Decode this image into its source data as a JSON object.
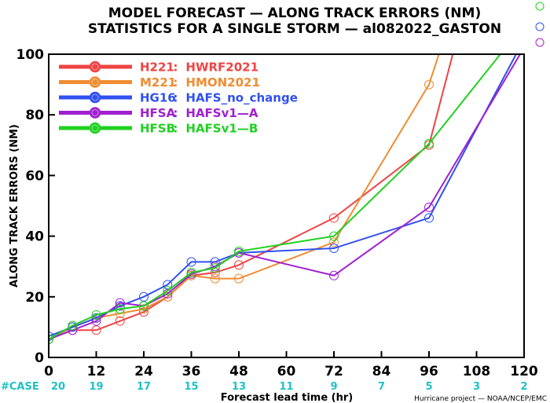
{
  "chart_data": {
    "type": "line",
    "title": "MODEL FORECAST — ALONG TRACK ERRORS (NM)",
    "subtitle": "STATISTICS FOR A SINGLE STORM — al082022_GASTON",
    "xlabel": "Forecast lead time (hr)",
    "ylabel": "ALONG TRACK ERRORS (NM)",
    "xlim": [
      0,
      120
    ],
    "ylim": [
      0,
      100
    ],
    "x_ticks": [
      0,
      12,
      24,
      36,
      48,
      60,
      72,
      84,
      96,
      108,
      120
    ],
    "y_ticks": [
      0,
      20,
      40,
      60,
      80,
      100
    ],
    "case_label": "#CASE",
    "case_counts": [
      20,
      19,
      17,
      15,
      13,
      11,
      9,
      7,
      5,
      3,
      2
    ],
    "credit": "Hurricane project — NOAA/NCEP/EMC",
    "legend_position": "top-left",
    "grid": false,
    "series": [
      {
        "code": "H221",
        "name": "HWRF2021",
        "color": "#ee4444",
        "x": [
          0,
          6,
          12,
          18,
          24,
          30,
          36,
          42,
          48,
          72,
          96,
          102
        ],
        "y": [
          6,
          9,
          9,
          12,
          15,
          20,
          27,
          28,
          30.5,
          46,
          70,
          100
        ]
      },
      {
        "code": "M221",
        "name": "HMON2021",
        "color": "#f08c32",
        "x": [
          0,
          6,
          12,
          18,
          24,
          30,
          36,
          42,
          48,
          72,
          96,
          98.5
        ],
        "y": [
          6,
          10,
          13,
          14.5,
          16,
          20,
          27,
          26,
          26,
          38,
          90,
          100
        ]
      },
      {
        "code": "HG16",
        "name": "HAFS_no_change",
        "color": "#3050f0",
        "x": [
          0,
          6,
          12,
          18,
          24,
          30,
          36,
          42,
          48,
          72,
          96,
          118
        ],
        "y": [
          7,
          10,
          13,
          17,
          20,
          24,
          31.5,
          31.5,
          34.5,
          36,
          46,
          100
        ]
      },
      {
        "code": "HFSA",
        "name": "HAFSv1—A",
        "color": "#a020d0",
        "x": [
          0,
          6,
          12,
          18,
          24,
          30,
          36,
          42,
          48,
          72,
          96,
          119
        ],
        "y": [
          6,
          9,
          12,
          18,
          17,
          21,
          27.5,
          30,
          34.5,
          27,
          49.5,
          100
        ]
      },
      {
        "code": "HFSB",
        "name": "HAFSv1—B",
        "color": "#20d020",
        "x": [
          0,
          6,
          12,
          18,
          24,
          30,
          36,
          42,
          48,
          72,
          96,
          114
        ],
        "y": [
          6,
          10.5,
          14,
          16,
          17,
          22,
          28,
          29.5,
          35,
          40,
          70.5,
          100
        ]
      }
    ]
  }
}
